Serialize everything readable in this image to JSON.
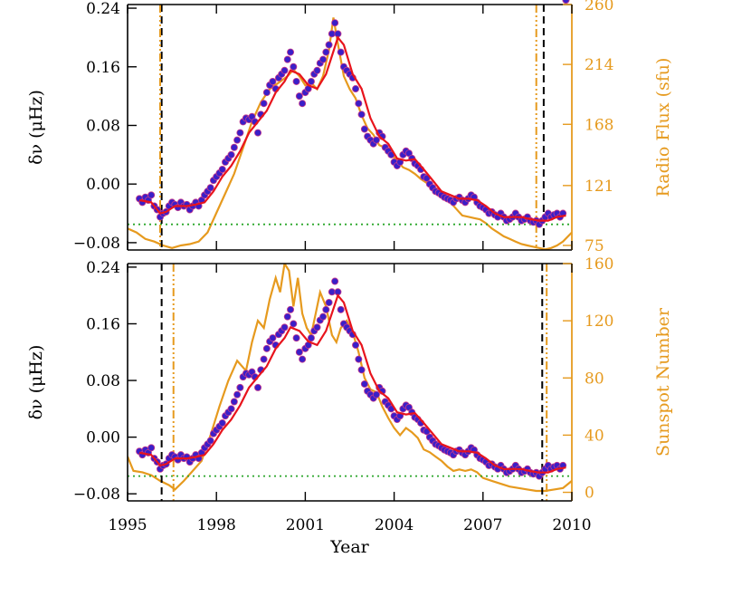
{
  "chart_data": [
    {
      "type": "scatter",
      "panel": "top",
      "xlabel": "",
      "ylabel_left": "δν (μHz)",
      "ylabel_right": "Radio Flux (sfu)",
      "xlim": [
        1995,
        2010
      ],
      "ylim_left": [
        -0.09,
        0.245
      ],
      "ylim_right": [
        71.5,
        260
      ],
      "yticks_left": [
        "0.24",
        "0.16",
        "0.08",
        "0.00",
        "−0.08"
      ],
      "yticks_left_values": [
        0.24,
        0.16,
        0.08,
        0.0,
        -0.08
      ],
      "yticks_right": [
        "260",
        "214",
        "168",
        "121",
        "75"
      ],
      "yticks_right_values": [
        260,
        214,
        168,
        121,
        75
      ],
      "colors": {
        "points": "#3a1fc8",
        "points_edge": "#c83a8a",
        "smooth": "#e8141c",
        "proxy": "#e69a1e",
        "baseline": "#2aa62a",
        "min_line": "#000000"
      },
      "baseline_y": -0.055,
      "vline_black": [
        1996.15,
        2009.05
      ],
      "vline_orange": [
        1996.1,
        2008.8
      ],
      "points_x": [
        1995.4,
        1995.5,
        1995.6,
        1995.7,
        1995.8,
        1995.9,
        1996.0,
        1996.1,
        1996.2,
        1996.3,
        1996.4,
        1996.5,
        1996.6,
        1996.7,
        1996.8,
        1996.9,
        1997.0,
        1997.1,
        1997.2,
        1997.3,
        1997.4,
        1997.5,
        1997.6,
        1997.7,
        1997.8,
        1997.9,
        1998.0,
        1998.1,
        1998.2,
        1998.3,
        1998.4,
        1998.5,
        1998.6,
        1998.7,
        1998.8,
        1998.9,
        1999.0,
        1999.1,
        1999.2,
        1999.3,
        1999.4,
        1999.5,
        1999.6,
        1999.7,
        1999.8,
        1999.9,
        2000.0,
        2000.1,
        2000.2,
        2000.3,
        2000.4,
        2000.5,
        2000.6,
        2000.7,
        2000.8,
        2000.9,
        2001.0,
        2001.1,
        2001.2,
        2001.3,
        2001.4,
        2001.5,
        2001.6,
        2001.7,
        2001.8,
        2001.9,
        2002.0,
        2002.1,
        2002.2,
        2002.3,
        2002.4,
        2002.5,
        2002.6,
        2002.7,
        2002.8,
        2002.9,
        2003.0,
        2003.1,
        2003.2,
        2003.3,
        2003.4,
        2003.5,
        2003.6,
        2003.7,
        2003.8,
        2003.9,
        2004.0,
        2004.1,
        2004.2,
        2004.3,
        2004.4,
        2004.5,
        2004.6,
        2004.7,
        2004.8,
        2004.9,
        2005.0,
        2005.1,
        2005.2,
        2005.3,
        2005.4,
        2005.5,
        2005.6,
        2005.7,
        2005.8,
        2005.9,
        2006.0,
        2006.1,
        2006.2,
        2006.3,
        2006.4,
        2006.5,
        2006.6,
        2006.7,
        2006.8,
        2006.9,
        2007.0,
        2007.1,
        2007.2,
        2007.3,
        2007.4,
        2007.5,
        2007.6,
        2007.7,
        2007.8,
        2007.9,
        2008.0,
        2008.1,
        2008.2,
        2008.3,
        2008.4,
        2008.5,
        2008.6,
        2008.7,
        2008.8,
        2008.9,
        2009.0,
        2009.1,
        2009.2,
        2009.3,
        2009.4,
        2009.5,
        2009.6,
        2009.7,
        2009.8
      ],
      "points_y": [
        -0.02,
        -0.025,
        -0.018,
        -0.022,
        -0.015,
        -0.03,
        -0.035,
        -0.045,
        -0.04,
        -0.038,
        -0.03,
        -0.025,
        -0.028,
        -0.032,
        -0.025,
        -0.03,
        -0.028,
        -0.035,
        -0.03,
        -0.025,
        -0.03,
        -0.022,
        -0.015,
        -0.01,
        -0.005,
        0.005,
        0.01,
        0.015,
        0.02,
        0.03,
        0.035,
        0.04,
        0.05,
        0.06,
        0.07,
        0.085,
        0.09,
        0.088,
        0.092,
        0.085,
        0.07,
        0.095,
        0.11,
        0.125,
        0.135,
        0.14,
        0.13,
        0.145,
        0.15,
        0.155,
        0.17,
        0.18,
        0.16,
        0.14,
        0.12,
        0.11,
        0.125,
        0.13,
        0.14,
        0.15,
        0.155,
        0.165,
        0.17,
        0.18,
        0.19,
        0.205,
        0.22,
        0.205,
        0.18,
        0.16,
        0.155,
        0.15,
        0.145,
        0.13,
        0.11,
        0.095,
        0.075,
        0.065,
        0.06,
        0.055,
        0.06,
        0.07,
        0.065,
        0.05,
        0.045,
        0.04,
        0.03,
        0.025,
        0.03,
        0.04,
        0.045,
        0.042,
        0.035,
        0.028,
        0.025,
        0.02,
        0.01,
        0.008,
        0.0,
        -0.005,
        -0.01,
        -0.012,
        -0.015,
        -0.018,
        -0.02,
        -0.022,
        -0.025,
        -0.02,
        -0.018,
        -0.022,
        -0.025,
        -0.02,
        -0.015,
        -0.018,
        -0.025,
        -0.03,
        -0.032,
        -0.035,
        -0.04,
        -0.038,
        -0.042,
        -0.045,
        -0.04,
        -0.045,
        -0.05,
        -0.048,
        -0.045,
        -0.04,
        -0.045,
        -0.05,
        -0.048,
        -0.045,
        -0.05,
        -0.052,
        -0.05,
        -0.055,
        -0.05,
        -0.045,
        -0.04,
        -0.045,
        -0.042,
        -0.04,
        -0.045,
        -0.04
      ],
      "smooth_x": [
        1995.4,
        1995.8,
        1996.1,
        1996.3,
        1996.6,
        1997.0,
        1997.3,
        1997.6,
        1997.9,
        1998.2,
        1998.5,
        1998.8,
        1999.1,
        1999.4,
        1999.7,
        2000.0,
        2000.3,
        2000.5,
        2000.8,
        2001.1,
        2001.4,
        2001.7,
        2001.9,
        2002.1,
        2002.3,
        2002.6,
        2002.9,
        2003.2,
        2003.5,
        2003.8,
        2004.1,
        2004.4,
        2004.7,
        2005.0,
        2005.3,
        2005.6,
        2005.9,
        2006.2,
        2006.5,
        2006.8,
        2007.1,
        2007.4,
        2007.7,
        2008.0,
        2008.3,
        2008.6,
        2008.9,
        2009.2,
        2009.5,
        2009.8
      ],
      "smooth_y": [
        -0.022,
        -0.025,
        -0.04,
        -0.038,
        -0.03,
        -0.03,
        -0.028,
        -0.025,
        -0.01,
        0.01,
        0.025,
        0.045,
        0.07,
        0.085,
        0.1,
        0.125,
        0.14,
        0.155,
        0.15,
        0.135,
        0.13,
        0.15,
        0.175,
        0.2,
        0.19,
        0.15,
        0.13,
        0.09,
        0.065,
        0.055,
        0.035,
        0.032,
        0.034,
        0.02,
        0.005,
        -0.01,
        -0.015,
        -0.02,
        -0.02,
        -0.022,
        -0.03,
        -0.04,
        -0.045,
        -0.045,
        -0.045,
        -0.048,
        -0.05,
        -0.05,
        -0.045,
        -0.043
      ],
      "proxy_x": [
        1995.0,
        1995.3,
        1995.6,
        1995.9,
        1996.2,
        1996.5,
        1996.8,
        1997.1,
        1997.4,
        1997.7,
        1998.0,
        1998.3,
        1998.6,
        1998.9,
        1999.2,
        1999.5,
        1999.8,
        2000.1,
        2000.4,
        2000.6,
        2000.8,
        2001.0,
        2001.2,
        2001.4,
        2001.6,
        2001.8,
        2001.95,
        2002.1,
        2002.3,
        2002.5,
        2002.7,
        2002.9,
        2003.1,
        2003.3,
        2003.5,
        2003.7,
        2003.9,
        2004.1,
        2004.3,
        2004.5,
        2004.7,
        2004.9,
        2005.1,
        2005.3,
        2005.5,
        2005.7,
        2005.9,
        2006.1,
        2006.3,
        2006.5,
        2006.7,
        2006.9,
        2007.1,
        2007.3,
        2007.5,
        2007.7,
        2007.9,
        2008.1,
        2008.3,
        2008.5,
        2008.7,
        2008.9,
        2009.1,
        2009.3,
        2009.5,
        2009.7,
        2010.0
      ],
      "proxy_y": [
        88,
        85,
        80,
        78,
        75,
        73,
        75,
        76,
        78,
        85,
        100,
        115,
        130,
        150,
        170,
        185,
        195,
        200,
        205,
        210,
        205,
        198,
        200,
        195,
        205,
        225,
        250,
        230,
        205,
        195,
        188,
        175,
        165,
        160,
        152,
        150,
        145,
        140,
        135,
        133,
        130,
        126,
        123,
        120,
        118,
        112,
        108,
        103,
        98,
        97,
        96,
        95,
        92,
        88,
        85,
        82,
        80,
        78,
        76,
        75,
        74,
        73,
        72,
        73,
        75,
        78,
        85
      ]
    },
    {
      "type": "scatter",
      "panel": "bottom",
      "xlabel": "Year",
      "ylabel_left": "δν (μHz)",
      "ylabel_right": "Sunspot Number",
      "xlim": [
        1995,
        2010
      ],
      "ylim_left": [
        -0.09,
        0.245
      ],
      "ylim_right": [
        -6,
        160
      ],
      "xticks": [
        "1995",
        "1998",
        "2001",
        "2004",
        "2007",
        "2010"
      ],
      "xticks_values": [
        1995,
        1998,
        2001,
        2004,
        2007,
        2010
      ],
      "yticks_left": [
        "0.24",
        "0.16",
        "0.08",
        "0.00",
        "−0.08"
      ],
      "yticks_left_values": [
        0.24,
        0.16,
        0.08,
        0.0,
        -0.08
      ],
      "yticks_right": [
        "160",
        "120",
        "80",
        "40",
        "0"
      ],
      "yticks_right_values": [
        160,
        120,
        80,
        40,
        0
      ],
      "baseline_y": -0.055,
      "vline_black": [
        1996.15,
        2009.0
      ],
      "vline_orange": [
        1996.55,
        2009.15
      ],
      "proxy_x": [
        1995.0,
        1995.2,
        1995.5,
        1995.8,
        1996.1,
        1996.4,
        1996.6,
        1996.9,
        1997.2,
        1997.5,
        1997.8,
        1998.1,
        1998.4,
        1998.7,
        1999.0,
        1999.2,
        1999.4,
        1999.6,
        1999.8,
        2000.0,
        2000.15,
        2000.3,
        2000.45,
        2000.6,
        2000.75,
        2000.9,
        2001.05,
        2001.2,
        2001.35,
        2001.5,
        2001.7,
        2001.9,
        2002.05,
        2002.2,
        2002.4,
        2002.6,
        2002.8,
        2003.0,
        2003.2,
        2003.4,
        2003.6,
        2003.8,
        2004.0,
        2004.2,
        2004.4,
        2004.6,
        2004.8,
        2005.0,
        2005.2,
        2005.4,
        2005.6,
        2005.8,
        2006.0,
        2006.2,
        2006.4,
        2006.6,
        2006.8,
        2007.0,
        2007.3,
        2007.6,
        2007.9,
        2008.2,
        2008.5,
        2008.8,
        2009.1,
        2009.4,
        2009.7,
        2010.0
      ],
      "proxy_y": [
        25,
        15,
        14,
        12,
        8,
        5,
        2,
        8,
        15,
        22,
        40,
        60,
        78,
        92,
        85,
        105,
        120,
        115,
        135,
        150,
        140,
        160,
        155,
        130,
        150,
        125,
        115,
        110,
        125,
        140,
        130,
        110,
        105,
        115,
        120,
        112,
        98,
        80,
        72,
        70,
        60,
        52,
        45,
        40,
        45,
        42,
        38,
        30,
        28,
        25,
        22,
        18,
        15,
        16,
        15,
        16,
        14,
        10,
        8,
        6,
        4,
        3,
        2,
        1,
        1,
        2,
        3,
        8
      ]
    }
  ]
}
